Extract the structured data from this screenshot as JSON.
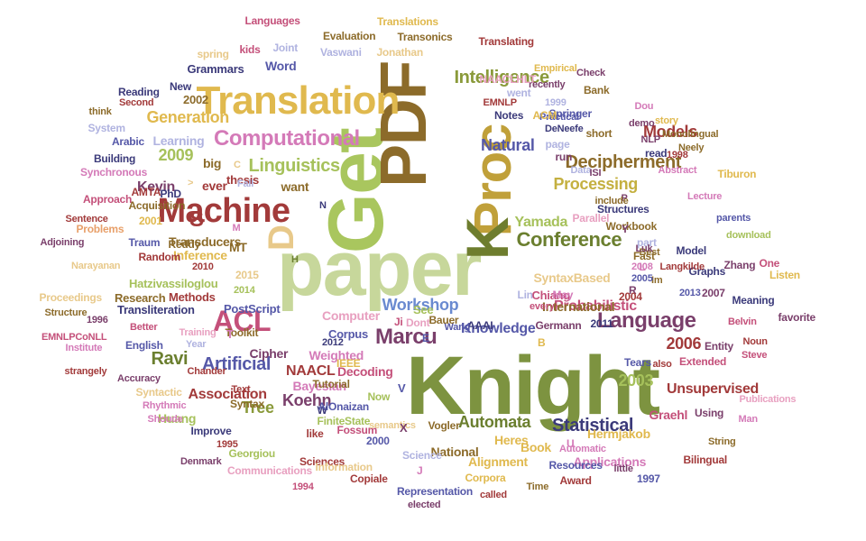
{
  "palette": [
    "#8c6b2a",
    "#a6c15b",
    "#c8d79a",
    "#6b7f2f",
    "#e0b94e",
    "#a23a3a",
    "#7a3f6b",
    "#5558a8",
    "#d47ab8",
    "#b0b3e0",
    "#e8a06a",
    "#3b3a7a",
    "#c4507a",
    "#9a9a3a"
  ],
  "words": [
    {
      "text": "Knight",
      "color": "#7d9340"
    },
    {
      "text": "paper",
      "color": "#c7d79b"
    },
    {
      "text": "Get",
      "color": "#a9c65e"
    },
    {
      "text": "PDF",
      "color": "#8c6b2a"
    },
    {
      "text": "Proc",
      "color": "#c0a03a"
    },
    {
      "text": "K",
      "color": "#6e7d2e"
    },
    {
      "text": "Translation",
      "color": "#e0b94e"
    },
    {
      "text": "Machine",
      "color": "#a23a3a"
    },
    {
      "text": "ACL",
      "color": "#c4507a"
    },
    {
      "text": "D",
      "color": "#e8c98a"
    },
    {
      "text": "S",
      "color": "#a23a3a"
    },
    {
      "text": "Computational",
      "color": "#d47ab8"
    },
    {
      "text": "Language",
      "color": "#7a3f6b"
    },
    {
      "text": "Conference",
      "color": "#6b7f2f"
    },
    {
      "text": "Intelligence",
      "color": "#8a9a3a"
    },
    {
      "text": "Linguistics",
      "color": "#a6c15b"
    },
    {
      "text": "Decipherment",
      "color": "#8c6b2a"
    },
    {
      "text": "Statistical",
      "color": "#3b3a7a"
    },
    {
      "text": "Marcu",
      "color": "#7a3f6b"
    },
    {
      "text": "Artificial",
      "color": "#5558a8"
    },
    {
      "text": "Workshop",
      "color": "#6a8ad0"
    },
    {
      "text": "Natural",
      "color": "#5558a8"
    },
    {
      "text": "Models",
      "color": "#a23a3a"
    },
    {
      "text": "Generation",
      "color": "#e0b94e"
    },
    {
      "text": "Processing",
      "color": "#c4b040"
    },
    {
      "text": "Association",
      "color": "#a23a3a"
    },
    {
      "text": "Ravi",
      "color": "#6b7f2f"
    },
    {
      "text": "Koehn",
      "color": "#7a3f6b"
    },
    {
      "text": "Automata",
      "color": "#6b7f2f"
    },
    {
      "text": "2006",
      "color": "#a23a3a"
    },
    {
      "text": "Yamada",
      "color": "#a6c15b"
    },
    {
      "text": "2009",
      "color": "#a6c15b"
    },
    {
      "text": "Kevin",
      "color": "#7a3f6b"
    },
    {
      "text": "Tree",
      "color": "#8a9a3a"
    },
    {
      "text": "2003",
      "color": "#a6c15b"
    },
    {
      "text": "Knowledge",
      "color": "#5558a8"
    },
    {
      "text": "Probabilistic",
      "color": "#c4507a"
    },
    {
      "text": "Unsupervised",
      "color": "#a23a3a"
    },
    {
      "text": "Alignment",
      "color": "#e0b94e"
    },
    {
      "text": "Hermjakob",
      "color": "#e0b94e"
    },
    {
      "text": "Bayesian",
      "color": "#d47ab8"
    },
    {
      "text": "Decoding",
      "color": "#c4507a"
    },
    {
      "text": "Weighted",
      "color": "#d47ab8"
    },
    {
      "text": "Transducers",
      "color": "#8c6b2a"
    },
    {
      "text": "SyntaxBased",
      "color": "#e8c98a"
    },
    {
      "text": "International",
      "color": "#8c6b2a"
    },
    {
      "text": "Huang",
      "color": "#a6c15b"
    },
    {
      "text": "NAACL",
      "color": "#a23a3a"
    },
    {
      "text": "Graehl",
      "color": "#c4507a"
    },
    {
      "text": "Heres",
      "color": "#e0b94e"
    },
    {
      "text": "National",
      "color": "#8c6b2a"
    },
    {
      "text": "Book",
      "color": "#e0b94e"
    },
    {
      "text": "Applications",
      "color": "#d47ab8"
    },
    {
      "text": "Inference",
      "color": "#e0b94e"
    },
    {
      "text": "Learning",
      "color": "#b0b3e0"
    },
    {
      "text": "Cipher",
      "color": "#7a3f6b"
    },
    {
      "text": "Computer",
      "color": "#e8a0c0"
    },
    {
      "text": "Corpus",
      "color": "#5558a8"
    },
    {
      "text": "Methods",
      "color": "#a23a3a"
    },
    {
      "text": "Research",
      "color": "#8c6b2a"
    },
    {
      "text": "Transliteration",
      "color": "#3b3a7a"
    },
    {
      "text": "PostScript",
      "color": "#5558a8"
    },
    {
      "text": "Hatzivassiloglou",
      "color": "#a6c15b"
    },
    {
      "text": "Chiang",
      "color": "#c4507a"
    },
    {
      "text": "Word",
      "color": "#5558a8"
    },
    {
      "text": "Grammars",
      "color": "#3b3a7a"
    },
    {
      "text": "Vaswani",
      "color": "#b0b3e0"
    },
    {
      "text": "Jonathan",
      "color": "#e8c98a"
    },
    {
      "text": "Evaluation",
      "color": "#8c6b2a"
    },
    {
      "text": "Transonics",
      "color": "#8c6b2a"
    },
    {
      "text": "Translations",
      "color": "#e0b94e"
    },
    {
      "text": "Translating",
      "color": "#a23a3a"
    },
    {
      "text": "Languages",
      "color": "#c4507a"
    },
    {
      "text": "Joint",
      "color": "#b0b3e0"
    },
    {
      "text": "spring",
      "color": "#e8c98a"
    },
    {
      "text": "kids",
      "color": "#c4507a"
    },
    {
      "text": "New",
      "color": "#3b3a7a"
    },
    {
      "text": "2002",
      "color": "#8c6b2a"
    },
    {
      "text": "Reading",
      "color": "#3b3a7a"
    },
    {
      "text": "Second",
      "color": "#a23a3a"
    },
    {
      "text": "think",
      "color": "#8c6b2a"
    },
    {
      "text": "System",
      "color": "#b0b3e0"
    },
    {
      "text": "Arabic",
      "color": "#5558a8"
    },
    {
      "text": "Building",
      "color": "#3b3a7a"
    },
    {
      "text": "Synchronous",
      "color": "#d47ab8"
    },
    {
      "text": "Approach",
      "color": "#c4507a"
    },
    {
      "text": "Sentence",
      "color": "#a23a3a"
    },
    {
      "text": "Adjoining",
      "color": "#7a3f6b"
    },
    {
      "text": "Problems",
      "color": "#e8a06a"
    },
    {
      "text": "2001",
      "color": "#e0b94e"
    },
    {
      "text": "Acquisition",
      "color": "#8c6b2a"
    },
    {
      "text": "AMTA",
      "color": "#a23a3a"
    },
    {
      "text": "Traum",
      "color": "#5558a8"
    },
    {
      "text": "Reddy",
      "color": "#8c6b2a"
    },
    {
      "text": "Narayanan",
      "color": "#e8c98a"
    },
    {
      "text": "Random",
      "color": "#a23a3a"
    },
    {
      "text": "Proceedings",
      "color": "#e8c98a"
    },
    {
      "text": "Structure",
      "color": "#8c6b2a"
    },
    {
      "text": "1996",
      "color": "#7a3f6b"
    },
    {
      "text": "EMNLPCoNLL",
      "color": "#c4507a"
    },
    {
      "text": "Better",
      "color": "#c4507a"
    },
    {
      "text": "Institute",
      "color": "#d47ab8"
    },
    {
      "text": "English",
      "color": "#5558a8"
    },
    {
      "text": "Year",
      "color": "#b0b3e0"
    },
    {
      "text": "Training",
      "color": "#e8a0c0"
    },
    {
      "text": "Toolkit",
      "color": "#8c6b2a"
    },
    {
      "text": "strangely",
      "color": "#a23a3a"
    },
    {
      "text": "Accuracy",
      "color": "#7a3f6b"
    },
    {
      "text": "Chander",
      "color": "#a23a3a"
    },
    {
      "text": "Syntactic",
      "color": "#e8c98a"
    },
    {
      "text": "Rhythmic",
      "color": "#d47ab8"
    },
    {
      "text": "Shoude",
      "color": "#d47ab8"
    },
    {
      "text": "Improve",
      "color": "#3b3a7a"
    },
    {
      "text": "1995",
      "color": "#a23a3a"
    },
    {
      "text": "Denmark",
      "color": "#7a3f6b"
    },
    {
      "text": "Georgiou",
      "color": "#a6c15b"
    },
    {
      "text": "Communications",
      "color": "#e8a0c0"
    },
    {
      "text": "Sciences",
      "color": "#a23a3a"
    },
    {
      "text": "Information",
      "color": "#e8c98a"
    },
    {
      "text": "1994",
      "color": "#c4507a"
    },
    {
      "text": "Representation",
      "color": "#5558a8"
    },
    {
      "text": "Copiale",
      "color": "#a23a3a"
    },
    {
      "text": "Corpora",
      "color": "#e0b94e"
    },
    {
      "text": "called",
      "color": "#a23a3a"
    },
    {
      "text": "elected",
      "color": "#7a3f6b"
    },
    {
      "text": "Time",
      "color": "#8c6b2a"
    },
    {
      "text": "Award",
      "color": "#a23a3a"
    },
    {
      "text": "little",
      "color": "#7a3f6b"
    },
    {
      "text": "1997",
      "color": "#5558a8"
    },
    {
      "text": "Bilingual",
      "color": "#a23a3a"
    },
    {
      "text": "Resources",
      "color": "#5558a8"
    },
    {
      "text": "Automatic",
      "color": "#d47ab8"
    },
    {
      "text": "String",
      "color": "#8c6b2a"
    },
    {
      "text": "Man",
      "color": "#d47ab8"
    },
    {
      "text": "Publications",
      "color": "#e8a0c0"
    },
    {
      "text": "Steve",
      "color": "#c4507a"
    },
    {
      "text": "Noun",
      "color": "#a23a3a"
    },
    {
      "text": "favorite",
      "color": "#7a3f6b"
    },
    {
      "text": "Belvin",
      "color": "#c4507a"
    },
    {
      "text": "Entity",
      "color": "#7a3f6b"
    },
    {
      "text": "Extended",
      "color": "#c4507a"
    },
    {
      "text": "Tears",
      "color": "#5558a8"
    },
    {
      "text": "also",
      "color": "#a23a3a"
    },
    {
      "text": "Using",
      "color": "#7a3f6b"
    },
    {
      "text": "Meaning",
      "color": "#3b3a7a"
    },
    {
      "text": "2007",
      "color": "#7a3f6b"
    },
    {
      "text": "2013",
      "color": "#5558a8"
    },
    {
      "text": "Listen",
      "color": "#e0b94e"
    },
    {
      "text": "One",
      "color": "#c4507a"
    },
    {
      "text": "Zhang",
      "color": "#7a3f6b"
    },
    {
      "text": "Graphs",
      "color": "#3b3a7a"
    },
    {
      "text": "Model",
      "color": "#3b3a7a"
    },
    {
      "text": "Langkilde",
      "color": "#a23a3a"
    },
    {
      "text": "download",
      "color": "#a6c15b"
    },
    {
      "text": "parents",
      "color": "#5558a8"
    },
    {
      "text": "Workbook",
      "color": "#8c6b2a"
    },
    {
      "text": "Lecture",
      "color": "#d47ab8"
    },
    {
      "text": "Tiburon",
      "color": "#e0b94e"
    },
    {
      "text": "Abstract",
      "color": "#d47ab8"
    },
    {
      "text": "Neely",
      "color": "#8c6b2a"
    },
    {
      "text": "1998",
      "color": "#a23a3a"
    },
    {
      "text": "Monolingual",
      "color": "#8c6b2a"
    },
    {
      "text": "Dou",
      "color": "#d47ab8"
    },
    {
      "text": "story",
      "color": "#e0b94e"
    },
    {
      "text": "NLP",
      "color": "#7a3f6b"
    },
    {
      "text": "read",
      "color": "#3b3a7a"
    },
    {
      "text": "demo",
      "color": "#7a3f6b"
    },
    {
      "text": "short",
      "color": "#8c6b2a"
    },
    {
      "text": "Data",
      "color": "#b0b3e0"
    },
    {
      "text": "DeNeefe",
      "color": "#3b3a7a"
    },
    {
      "text": "page",
      "color": "#b0b3e0"
    },
    {
      "text": "run",
      "color": "#7a3f6b"
    },
    {
      "text": "ISI",
      "color": "#7a3f6b"
    },
    {
      "text": "1999",
      "color": "#b0b3e0"
    },
    {
      "text": "Practical",
      "color": "#5558a8"
    },
    {
      "text": "Springer",
      "color": "#5558a8"
    },
    {
      "text": "ACM",
      "color": "#e0b94e"
    },
    {
      "text": "Bank",
      "color": "#8c6b2a"
    },
    {
      "text": "recently",
      "color": "#7a3f6b"
    },
    {
      "text": "Empirical",
      "color": "#e0b94e"
    },
    {
      "text": "Check",
      "color": "#7a3f6b"
    },
    {
      "text": "went",
      "color": "#b0b3e0"
    },
    {
      "text": "NAACLHLT",
      "color": "#e8a0c0"
    },
    {
      "text": "EMNLP",
      "color": "#a23a3a"
    },
    {
      "text": "Notes",
      "color": "#3b3a7a"
    },
    {
      "text": "Parallel",
      "color": "#e8a0c0"
    },
    {
      "text": "Y",
      "color": "#7a3f6b"
    },
    {
      "text": "P",
      "color": "#7a3f6b"
    },
    {
      "text": "include",
      "color": "#8c6b2a"
    },
    {
      "text": "Structures",
      "color": "#3b3a7a"
    },
    {
      "text": "part",
      "color": "#b0b3e0"
    },
    {
      "text": "Fast",
      "color": "#8c6b2a"
    },
    {
      "text": "Im",
      "color": "#8c6b2a"
    },
    {
      "text": "L",
      "color": "#d47ab8"
    },
    {
      "text": "Best",
      "color": "#8c6b2a"
    },
    {
      "text": "Luk",
      "color": "#7a3f6b"
    },
    {
      "text": "May",
      "color": "#d47ab8"
    },
    {
      "text": "every",
      "color": "#c4507a"
    },
    {
      "text": "Lin",
      "color": "#b0b3e0"
    },
    {
      "text": "R",
      "color": "#7a3f6b"
    },
    {
      "text": "2005",
      "color": "#5558a8"
    },
    {
      "text": "2008",
      "color": "#d47ab8"
    },
    {
      "text": "2004",
      "color": "#a23a3a"
    },
    {
      "text": "Germann",
      "color": "#7a3f6b"
    },
    {
      "text": "2011",
      "color": "#3b3a7a"
    },
    {
      "text": "B",
      "color": "#e0b94e"
    },
    {
      "text": "AAAI",
      "color": "#3b3a7a"
    },
    {
      "text": "Wang",
      "color": "#5558a8"
    },
    {
      "text": "E",
      "color": "#5558a8"
    },
    {
      "text": "Dont",
      "color": "#e8a0c0"
    },
    {
      "text": "Bauer",
      "color": "#8c6b2a"
    },
    {
      "text": "See",
      "color": "#a6c15b"
    },
    {
      "text": "Ji",
      "color": "#c4507a"
    },
    {
      "text": "2012",
      "color": "#3b3a7a"
    },
    {
      "text": "IEEE",
      "color": "#e0b94e"
    },
    {
      "text": "Tutorial",
      "color": "#8c6b2a"
    },
    {
      "text": "W",
      "color": "#3b3a7a"
    },
    {
      "text": "Text",
      "color": "#a23a3a"
    },
    {
      "text": "Syntax",
      "color": "#8c6b2a"
    },
    {
      "text": "AlOnaizan",
      "color": "#5558a8"
    },
    {
      "text": "Now",
      "color": "#a6c15b"
    },
    {
      "text": "V",
      "color": "#5558a8"
    },
    {
      "text": "FiniteState",
      "color": "#a6c15b"
    },
    {
      "text": "Fossum",
      "color": "#c4507a"
    },
    {
      "text": "like",
      "color": "#a23a3a"
    },
    {
      "text": "semantics",
      "color": "#e8c98a"
    },
    {
      "text": "X",
      "color": "#7a3f6b"
    },
    {
      "text": "2000",
      "color": "#5558a8"
    },
    {
      "text": "Science",
      "color": "#b0b3e0"
    },
    {
      "text": "Vogler",
      "color": "#8c6b2a"
    },
    {
      "text": "J",
      "color": "#d47ab8"
    },
    {
      "text": "U",
      "color": "#d47ab8"
    },
    {
      "text": "2015",
      "color": "#e8c98a"
    },
    {
      "text": "2014",
      "color": "#a6c15b"
    },
    {
      "text": "2010",
      "color": "#a23a3a"
    },
    {
      "text": "MT",
      "color": "#8c6b2a"
    },
    {
      "text": "T",
      "color": "#d47ab8"
    },
    {
      "text": "H",
      "color": "#6b7f2f"
    },
    {
      "text": "M",
      "color": "#d47ab8"
    },
    {
      "text": "thesis",
      "color": "#a23a3a"
    },
    {
      "text": "want",
      "color": "#8c6b2a"
    },
    {
      "text": "Fall",
      "color": "#b0b3e0"
    },
    {
      "text": "PhD",
      "color": "#3b3a7a"
    },
    {
      "text": "ever",
      "color": "#a23a3a"
    },
    {
      "text": "big",
      "color": "#8c6b2a"
    },
    {
      "text": ">",
      "color": "#e8c98a"
    },
    {
      "text": "C",
      "color": "#e8c98a"
    },
    {
      "text": "N",
      "color": "#3b3a7a"
    }
  ]
}
